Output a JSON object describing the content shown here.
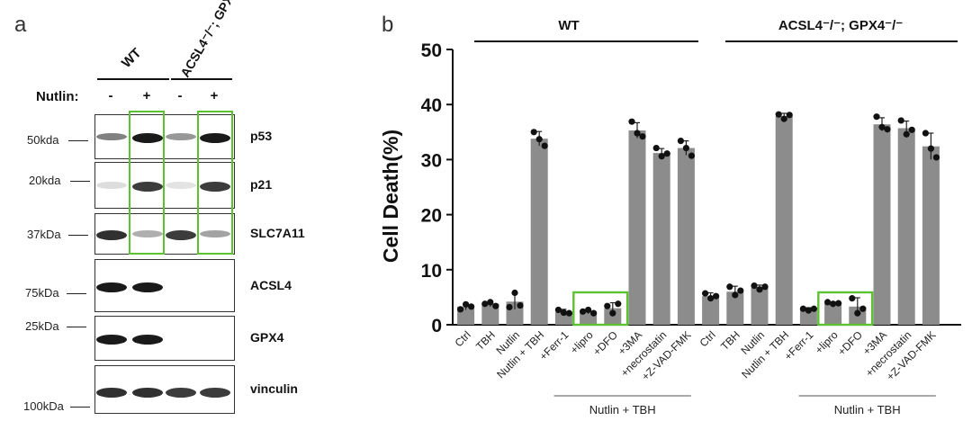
{
  "panel_a": {
    "letter": "a",
    "group_labels": [
      "WT",
      "ACSL4⁻/⁻; GPX4⁻/⁻"
    ],
    "treatment_label": "Nutlin:",
    "treatment_signs": [
      "-",
      "+",
      "-",
      "+"
    ],
    "blots": [
      {
        "protein": "p53",
        "marker": "50kda",
        "intensities": [
          0.55,
          1.0,
          0.45,
          1.0
        ]
      },
      {
        "protein": "p21",
        "marker": "20kda",
        "intensities": [
          0.15,
          0.85,
          0.1,
          0.85
        ]
      },
      {
        "protein": "SLC7A11",
        "marker": "37kDa",
        "intensities": [
          0.9,
          0.35,
          0.85,
          0.4
        ]
      },
      {
        "protein": "ACSL4",
        "marker": "75kDa",
        "intensities": [
          1.0,
          1.0,
          0,
          0
        ]
      },
      {
        "protein": "GPX4",
        "marker": "25kDa",
        "intensities": [
          1.0,
          1.0,
          0,
          0
        ]
      },
      {
        "protein": "vinculin",
        "marker": "100kDa",
        "intensities": [
          0.9,
          0.9,
          0.85,
          0.85
        ]
      }
    ],
    "highlight_color": "#5cc232"
  },
  "panel_b": {
    "letter": "b",
    "highlight_color": "#5cc232"
  },
  "chart_data": {
    "type": "bar",
    "title": "",
    "ylabel": "Cell Death(%)",
    "xlabel": "",
    "ylim": [
      0,
      50
    ],
    "yticks": [
      0,
      10,
      20,
      30,
      40,
      50
    ],
    "bar_color": "#8c8c8c",
    "groups": [
      {
        "name": "WT",
        "treatment_label": "Nutlin + TBH",
        "categories": [
          "Ctrl",
          "TBH",
          "Nutlin",
          "Nutlin + TBH",
          "+Ferr-1",
          "+lipro",
          "+DFO",
          "+3MA",
          "+necrostatin",
          "+Z-VAD-FMK"
        ],
        "values": [
          3.3,
          3.8,
          4.2,
          33.8,
          2.3,
          2.4,
          3.0,
          35.3,
          31.2,
          32.1
        ],
        "errors": [
          0.6,
          0.5,
          1.4,
          1.3,
          0.5,
          0.4,
          1.0,
          1.4,
          0.8,
          1.3
        ],
        "points": [
          [
            2.8,
            3.7,
            3.3
          ],
          [
            3.8,
            4.1,
            3.4
          ],
          [
            3.2,
            5.8,
            3.5
          ],
          [
            35.0,
            33.7,
            32.5
          ],
          [
            2.7,
            2.2,
            2.1
          ],
          [
            2.4,
            2.7,
            2.1
          ],
          [
            3.4,
            2.1,
            3.8
          ],
          [
            36.9,
            34.8,
            34.2
          ],
          [
            32.1,
            30.6,
            31.1
          ],
          [
            33.4,
            32.1,
            30.7
          ]
        ],
        "highlight": [
          "+lipro",
          "+DFO"
        ]
      },
      {
        "name": "ACSL4⁻/⁻; GPX4⁻/⁻",
        "treatment_label": "Nutlin + TBH",
        "categories": [
          "Ctrl",
          "TBH",
          "Nutlin",
          "Nutlin + TBH",
          "+Ferr-1",
          "+lipro",
          "+DFO",
          "+3MA",
          "+necrostatin",
          "+Z-VAD-FMK"
        ],
        "values": [
          5.2,
          6.0,
          6.8,
          37.9,
          2.8,
          3.9,
          3.3,
          36.4,
          35.7,
          32.4
        ],
        "errors": [
          0.6,
          1.0,
          0.4,
          0.5,
          0.3,
          0.2,
          1.6,
          1.2,
          1.3,
          2.4
        ],
        "points": [
          [
            5.7,
            4.8,
            5.2
          ],
          [
            6.9,
            5.4,
            6.2
          ],
          [
            7.1,
            6.4,
            6.9
          ],
          [
            38.2,
            37.4,
            38.1
          ],
          [
            2.9,
            2.6,
            2.9
          ],
          [
            4.1,
            3.8,
            3.9
          ],
          [
            4.8,
            2.1,
            2.9
          ],
          [
            37.8,
            35.9,
            35.5
          ],
          [
            37.1,
            34.6,
            35.4
          ],
          [
            34.8,
            32.0,
            30.4
          ]
        ],
        "highlight": [
          "+lipro",
          "+DFO"
        ]
      }
    ]
  }
}
